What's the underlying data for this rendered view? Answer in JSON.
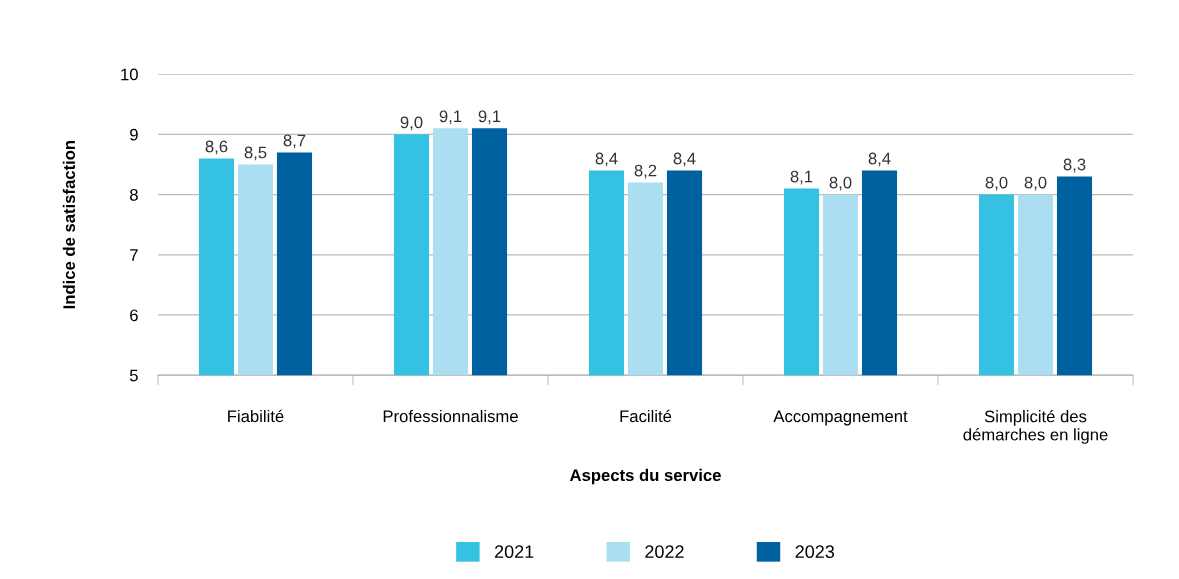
{
  "chart_data": {
    "type": "bar",
    "xlabel": "Aspects du service",
    "ylabel": "Indice de satisfaction",
    "categories": [
      "Fiabilité",
      "Professionnalisme",
      "Facilité",
      "Accompagnement",
      "Simplicité des\ndémarches en ligne"
    ],
    "series": [
      {
        "name": "2021",
        "color": "#35c1e1",
        "values": [
          8.6,
          9.0,
          8.4,
          8.1,
          8.0
        ],
        "value_labels": [
          "8,6",
          "9,0",
          "8,4",
          "8,1",
          "8,0"
        ]
      },
      {
        "name": "2022",
        "color": "#aadef0",
        "values": [
          8.5,
          9.1,
          8.2,
          8.0,
          8.0
        ],
        "value_labels": [
          "8,5",
          "9,1",
          "8,2",
          "8,0",
          "8,0"
        ]
      },
      {
        "name": "2023",
        "color": "#0061a1",
        "values": [
          8.7,
          9.1,
          8.4,
          8.4,
          8.3
        ],
        "value_labels": [
          "8,7",
          "9,1",
          "8,4",
          "8,4",
          "8,3"
        ]
      }
    ],
    "ylim": [
      5,
      10
    ],
    "yticks": [
      5,
      6,
      7,
      8,
      9,
      10
    ],
    "grid": "y",
    "legend": "bottom"
  }
}
